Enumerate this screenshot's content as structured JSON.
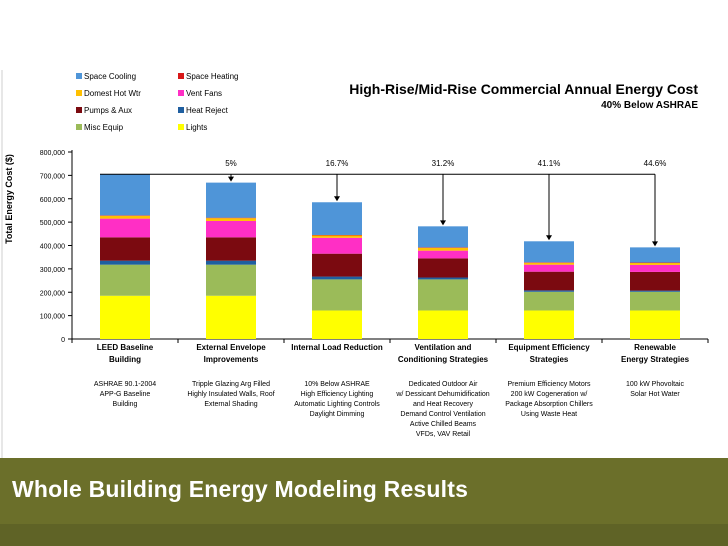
{
  "slide_title": "Whole Building Energy Modeling Results",
  "chart_data": {
    "type": "bar",
    "stacked": true,
    "title": "High-Rise/Mid-Rise Commercial Annual Energy Cost",
    "subtitle": "40% Below ASHRAE",
    "ylabel": "Total Energy Cost ($)",
    "ylim": [
      0,
      800000
    ],
    "yticks": [
      0,
      100000,
      200000,
      300000,
      400000,
      500000,
      600000,
      700000,
      800000
    ],
    "ytick_labels": [
      "0",
      "100,000",
      "200,000",
      "300,000",
      "400,000",
      "500,000",
      "600,000",
      "700,000",
      "800,000"
    ],
    "grid": false,
    "legend_position": "top-left",
    "baseline_value": 705000,
    "categories": [
      [
        "LEED Baseline",
        "Building"
      ],
      [
        "External Envelope",
        "Improvements"
      ],
      [
        "Internal Load Reduction"
      ],
      [
        "Ventilation and",
        "Conditioning Strategies"
      ],
      [
        "Equipment Efficiency",
        "Strategies"
      ],
      [
        "Renewable",
        "Energy Strategies"
      ]
    ],
    "descriptions": [
      [
        "ASHRAE 90.1-2004",
        "APP-G Baseline",
        "Building"
      ],
      [
        "Tripple Glazing Arg Filled",
        "Highly Insulated Walls, Roof",
        "External Shading"
      ],
      [
        "10% Below ASHRAE",
        "High Efficiency Lighting",
        "Automatic Lighting Controls",
        "Daylight Dimming"
      ],
      [
        "Dedicated Outdoor Air",
        "w/ Dessicant Dehumidification",
        "and Heat Recovery",
        "Demand Control Ventilation",
        "Active Chilled Beams",
        "VFDs, VAV Retail"
      ],
      [
        "Premium Efficiency Motors",
        "200 kW Cogeneration w/",
        "Package Absorption Chillers",
        "Using Waste Heat"
      ],
      [
        "100 kW Phovoltaic",
        "Solar Hot Water"
      ]
    ],
    "savings_labels": [
      "",
      "5%",
      "16.7%",
      "31.2%",
      "41.1%",
      "44.6%"
    ],
    "series": [
      {
        "name": "Lights",
        "color": "#ffff00",
        "values": [
          185000,
          185000,
          122000,
          122000,
          122000,
          122000
        ]
      },
      {
        "name": "Misc Equip",
        "color": "#9bbb59",
        "values": [
          133000,
          133000,
          133000,
          133000,
          80000,
          80000
        ]
      },
      {
        "name": "Heat Reject",
        "color": "#1f5fa0",
        "values": [
          17000,
          17000,
          12000,
          8000,
          6000,
          5000
        ]
      },
      {
        "name": "Pumps & Aux",
        "color": "#7b0a10",
        "values": [
          100000,
          100000,
          98000,
          82000,
          80000,
          80000
        ]
      },
      {
        "name": "Vent Fans",
        "color": "#ff2fc5",
        "values": [
          80000,
          70000,
          68000,
          33000,
          30000,
          30000
        ]
      },
      {
        "name": "Domest Hot Wtr",
        "color": "#ffc000",
        "values": [
          12000,
          12000,
          10000,
          12000,
          8000,
          8000
        ]
      },
      {
        "name": "Space Heating",
        "color": "#d81818",
        "values": [
          2000,
          2000,
          2000,
          2000,
          2000,
          2000
        ]
      },
      {
        "name": "Space Cooling",
        "color": "#4f95d8",
        "values": [
          176000,
          150000,
          140000,
          90000,
          90000,
          65000
        ]
      }
    ],
    "legend_order": [
      "Space Cooling",
      "Space Heating",
      "Domest Hot Wtr",
      "Vent Fans",
      "Pumps & Aux",
      "Heat Reject",
      "Misc Equip",
      "Lights"
    ]
  }
}
